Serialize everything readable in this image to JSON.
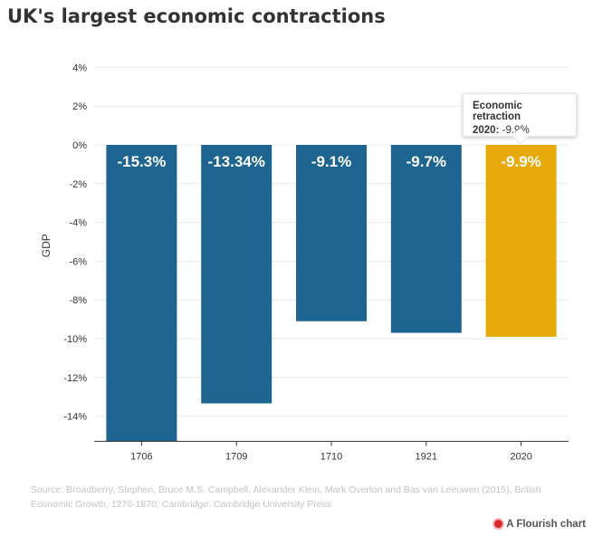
{
  "title": "UK's largest economic contractions",
  "source": "Source: Broadberry, Stephen, Bruce M.S. Campbell, Alexander Klein, Mark Overton and Bas van Leeuwen (2015), British Economic Growth, 1270-1870, Cambridge: Cambridge University Press",
  "credit": "A Flourish chart",
  "tooltip": {
    "title": "Economic retraction",
    "key": "2020:",
    "value": "-9.9%"
  },
  "colors": {
    "bar": "#1d6590",
    "highlight": "#e8a90a",
    "grid": "#e9e9e9",
    "axis": "#333333"
  },
  "chart_data": {
    "type": "bar",
    "categories": [
      "1706",
      "1709",
      "1710",
      "1921",
      "2020"
    ],
    "values": [
      -15.3,
      -13.34,
      -9.1,
      -9.7,
      -9.9
    ],
    "labels": [
      "-15.3%",
      "-13.34%",
      "-9.1%",
      "-9.7%",
      "-9.9%"
    ],
    "highlight": "2020",
    "ylabel": "GDP",
    "xlabel": "",
    "ylim": [
      -15.3,
      4.8
    ],
    "yticks": [
      4,
      2,
      0,
      -2,
      -4,
      -6,
      -8,
      -10,
      -12,
      -14
    ],
    "ytick_labels": [
      "4%",
      "2%",
      "0%",
      "-2%",
      "-4%",
      "-6%",
      "-8%",
      "-10%",
      "-12%",
      "-14%"
    ],
    "grid": true
  }
}
